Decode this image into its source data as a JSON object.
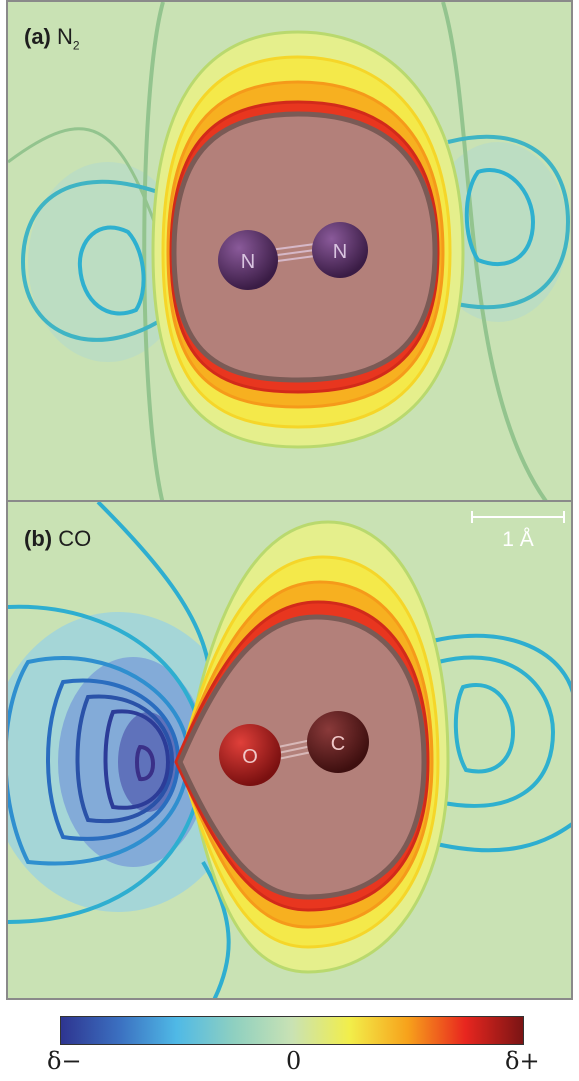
{
  "panels": [
    {
      "label_bold": "(a)",
      "label_text": "N",
      "label_sub": "2",
      "atoms": [
        {
          "symbol": "N",
          "color": "#5a3466"
        },
        {
          "symbol": "N",
          "color": "#5a3466"
        }
      ]
    },
    {
      "label_bold": "(b)",
      "label_text": "CO",
      "label_sub": "",
      "atoms": [
        {
          "symbol": "O",
          "color": "#a41f22"
        },
        {
          "symbol": "C",
          "color": "#5e1f1f"
        }
      ]
    }
  ],
  "scalebar": {
    "label": "1 Å"
  },
  "colorbar": {
    "min_label": "δ−",
    "mid_label": "0",
    "max_label": "δ+",
    "colors": [
      "#2e3590",
      "#3b6fc0",
      "#4fb9e6",
      "#8fd0c0",
      "#c9e2b4",
      "#f2ee4a",
      "#f7a21b",
      "#e8261f",
      "#7a1414"
    ]
  }
}
